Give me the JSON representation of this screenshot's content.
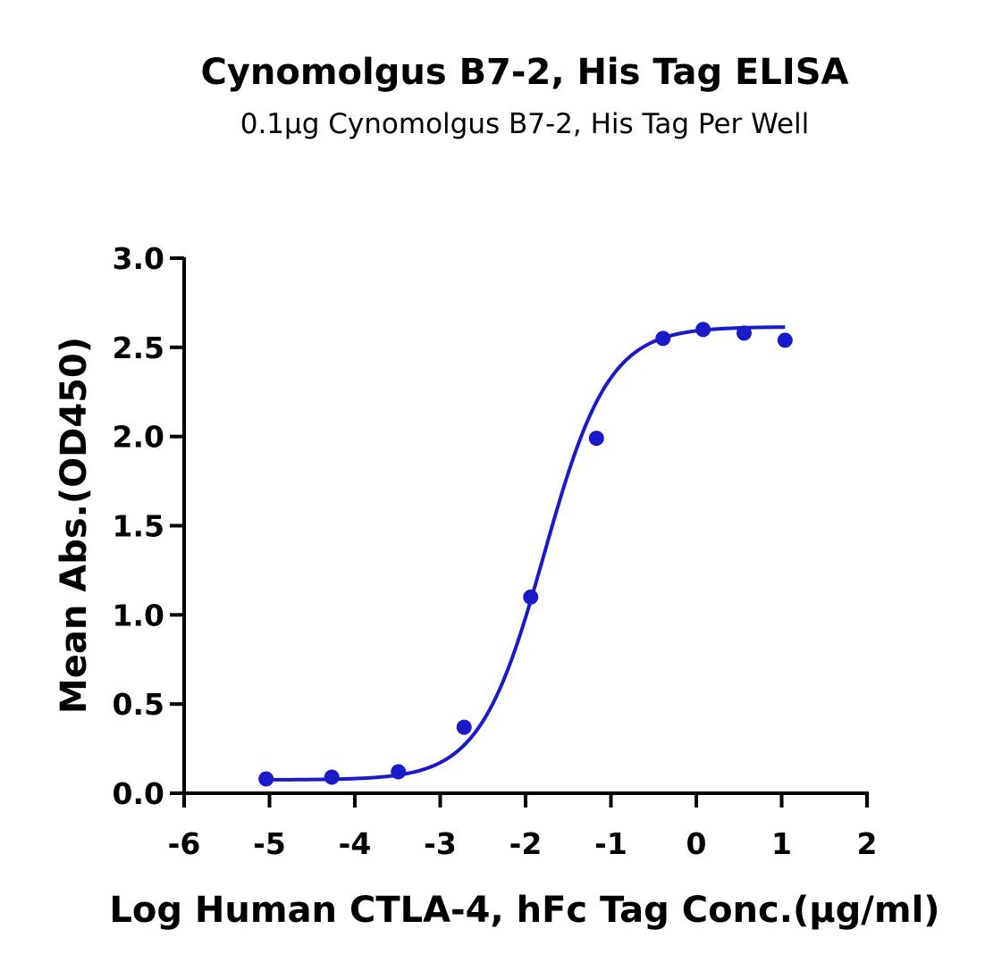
{
  "chart_data": {
    "type": "scatter",
    "title": "Cynomolgus B7-2, His Tag ELISA",
    "subtitle": "0.1μg Cynomolgus B7-2, His Tag Per Well",
    "xlabel": "Log Human CTLA-4, hFc Tag Conc.(μg/ml)",
    "ylabel": "Mean Abs.(OD450)",
    "xlim": [
      -6,
      2
    ],
    "ylim": [
      0,
      3
    ],
    "x_ticks": [
      "-6",
      "-5",
      "-4",
      "-3",
      "-2",
      "-1",
      "0",
      "1",
      "2"
    ],
    "y_ticks": [
      "0.0",
      "0.5",
      "1.0",
      "1.5",
      "2.0",
      "2.5",
      "3.0"
    ],
    "color": "#1a1ac8",
    "series": [
      {
        "points": [
          {
            "x": -5.04,
            "y": 0.08
          },
          {
            "x": -4.27,
            "y": 0.09
          },
          {
            "x": -3.49,
            "y": 0.12
          },
          {
            "x": -2.72,
            "y": 0.37
          },
          {
            "x": -1.94,
            "y": 1.1
          },
          {
            "x": -1.17,
            "y": 1.99
          },
          {
            "x": -0.39,
            "y": 2.55
          },
          {
            "x": 0.08,
            "y": 2.6
          },
          {
            "x": 0.56,
            "y": 2.58
          },
          {
            "x": 1.04,
            "y": 2.54
          }
        ],
        "fit": {
          "model": "4PL",
          "bottom": 0.075,
          "top": 2.615,
          "log_ec50": -1.78,
          "hill_slope": 1.15,
          "x_range": [
            -5.04,
            1.04
          ]
        }
      }
    ]
  }
}
